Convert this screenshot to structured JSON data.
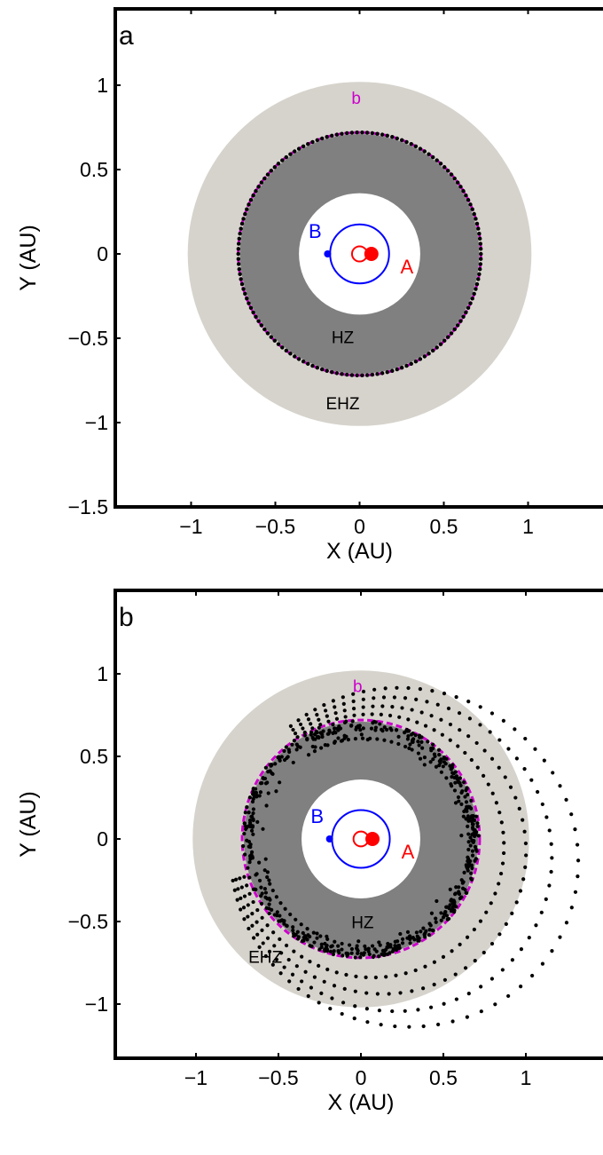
{
  "chart_data": [
    {
      "type": "scatter",
      "panel_label": "a",
      "xlabel": "X (AU)",
      "ylabel": "Y (AU)",
      "xlim": [
        -1.45,
        1.45
      ],
      "ylim": [
        -1.5,
        1.5
      ],
      "x_ticks": [
        -1,
        -0.5,
        0,
        0.5,
        1
      ],
      "x_tick_labels": [
        "−1",
        "−0.5",
        "0",
        "0.5",
        "1"
      ],
      "y_ticks": [
        -1.5,
        -1,
        -0.5,
        0,
        0.5,
        1
      ],
      "y_tick_labels": [
        "−1.5",
        "−1",
        "−0.5",
        "0",
        "0.5",
        "1"
      ],
      "grid": false,
      "zones": {
        "ehz_outer": 1.02,
        "hz_outer": 0.71,
        "hz_inner": 0.36
      },
      "zone_labels": {
        "hz": "HZ",
        "ehz": "EHZ"
      },
      "planet_orbit": {
        "label": "b",
        "radius": 0.72,
        "color": "#cc00cc"
      },
      "star_A": {
        "label": "A",
        "x": 0.07,
        "y": 0.0,
        "circle_center": 0.0,
        "circle_radius": 0.045,
        "color": "#ff0000"
      },
      "star_B": {
        "label": "B",
        "x": -0.19,
        "y": 0.0,
        "orbit_center": 0.0,
        "orbit_radius": 0.175,
        "color": "#0000ff"
      },
      "trajectory": "circle"
    },
    {
      "type": "scatter",
      "panel_label": "b",
      "xlabel": "X (AU)",
      "ylabel": "Y (AU)",
      "xlim": [
        -1.45,
        1.45
      ],
      "ylim": [
        -1.5,
        1.5
      ],
      "x_ticks": [
        -1,
        -0.5,
        0,
        0.5,
        1
      ],
      "x_tick_labels": [
        "−1",
        "−0.5",
        "0",
        "0.5",
        "1"
      ],
      "y_ticks": [
        -1,
        -0.5,
        0,
        0.5,
        1
      ],
      "y_tick_labels": [
        "−1",
        "−0.5",
        "0",
        "0.5",
        "1"
      ],
      "grid": false,
      "zones": {
        "ehz_outer": 1.02,
        "hz_outer": 0.71,
        "hz_inner": 0.36
      },
      "zone_labels": {
        "hz": "HZ",
        "ehz": "EHZ"
      },
      "planet_orbit": {
        "label": "b",
        "radius": 0.72,
        "color": "#cc00cc"
      },
      "star_A": {
        "label": "A",
        "x": 0.07,
        "y": 0.0,
        "circle_center": 0.0,
        "circle_radius": 0.045,
        "color": "#ff0000"
      },
      "star_B": {
        "label": "B",
        "x": -0.19,
        "y": 0.0,
        "orbit_center": 0.0,
        "orbit_radius": 0.175,
        "color": "#0000ff"
      },
      "trajectory": "scattered"
    }
  ],
  "colors": {
    "ehz": "#d6d3cc",
    "hz": "#808080",
    "planet_orbit": "#cc00cc",
    "trajectory": "#000000"
  }
}
